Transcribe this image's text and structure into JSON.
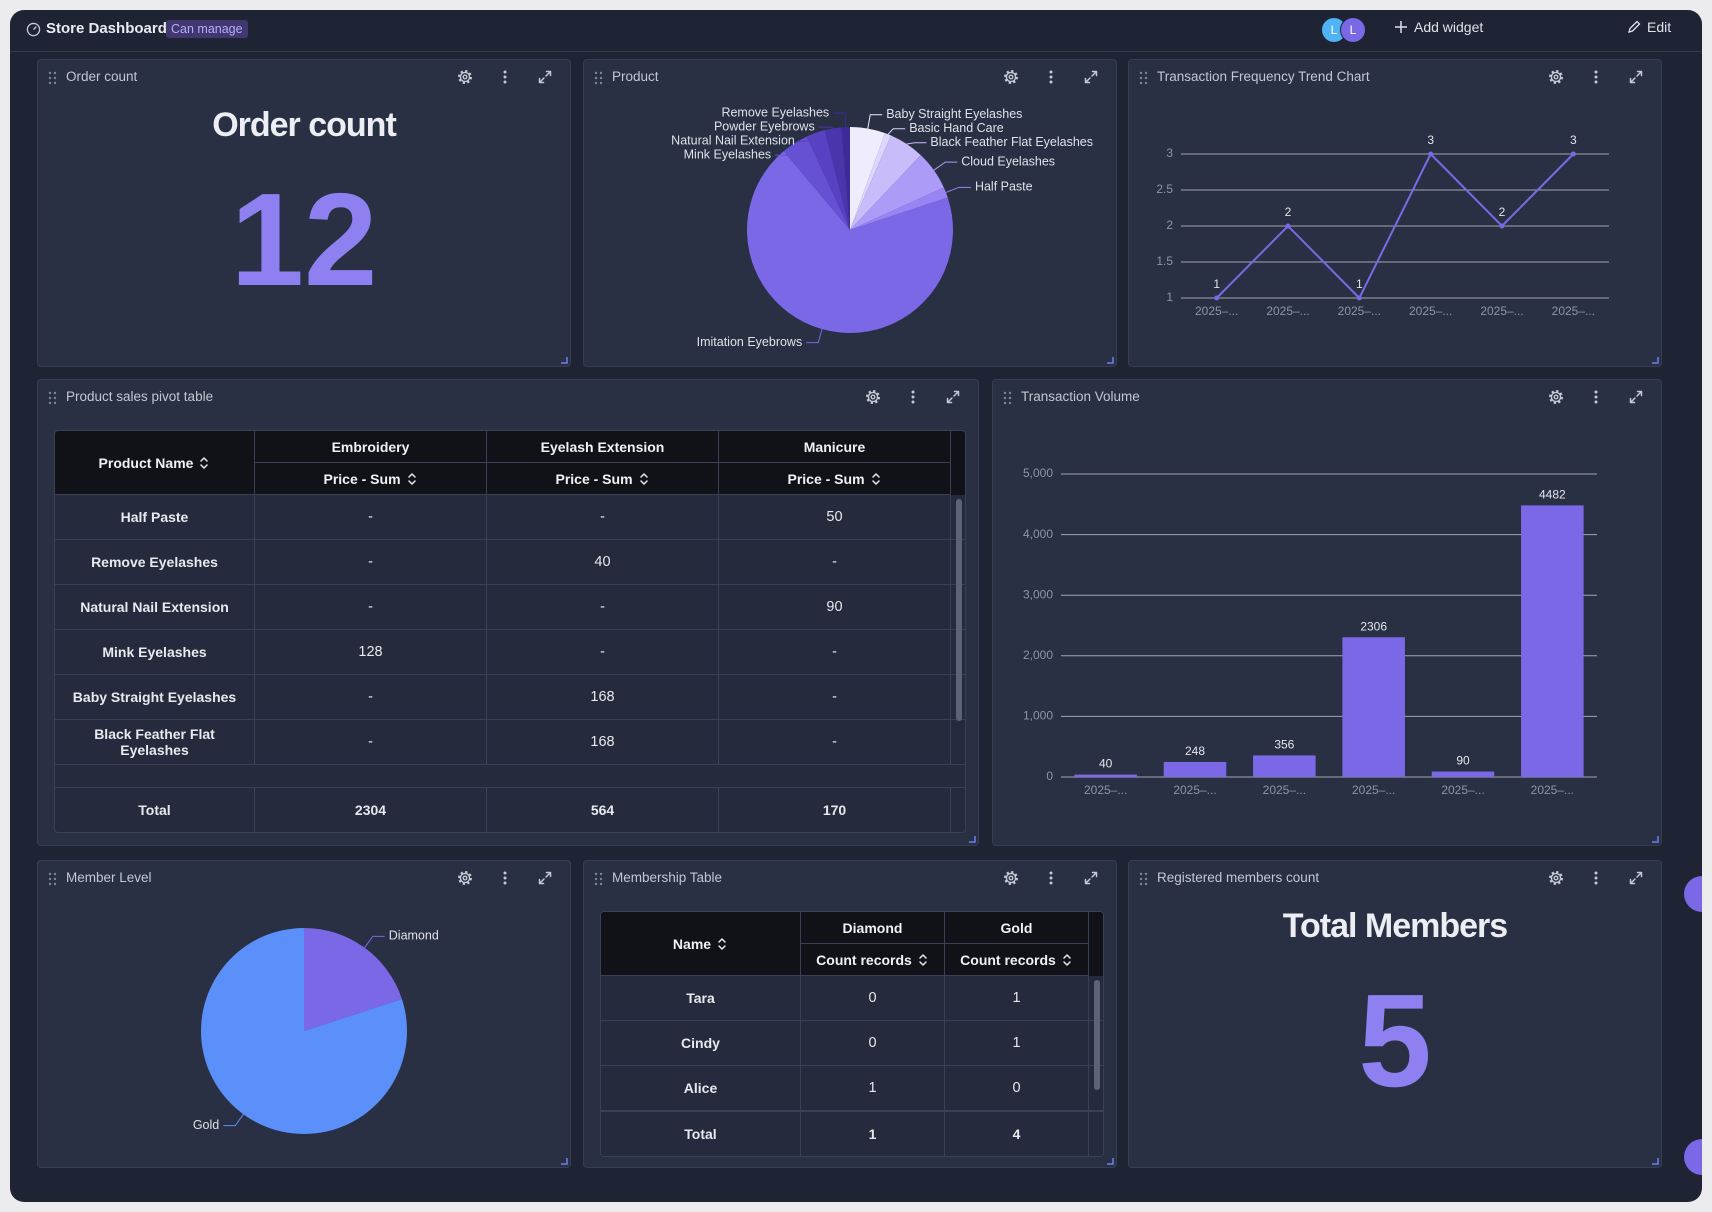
{
  "header": {
    "title": "Store Dashboard",
    "badge": "Can manage",
    "avatars": [
      "L",
      "L"
    ],
    "add_widget": "Add widget",
    "edit": "Edit"
  },
  "metrics": [
    {
      "title": "Order count",
      "label": "Order count",
      "value": 12
    },
    {
      "title": "Registered members count",
      "label": "Total Members",
      "value": 5
    }
  ],
  "tables": [
    {
      "title": "Product sales pivot table",
      "row_header": "Product Name",
      "column_groups": [
        "Embroidery",
        "Eyelash Extension",
        "Manicure"
      ],
      "measures": [
        "Price - Sum",
        "Price - Sum",
        "Price - Sum"
      ],
      "rows": [
        [
          "Half Paste",
          "-",
          "-",
          50
        ],
        [
          "Remove Eyelashes",
          "-",
          40,
          "-"
        ],
        [
          "Natural Nail Extension",
          "-",
          "-",
          90
        ],
        [
          "Mink Eyelashes",
          128,
          "-",
          "-"
        ],
        [
          "Baby Straight Eyelashes",
          "-",
          168,
          "-"
        ],
        [
          "Black Feather Flat Eyelashes",
          "-",
          168,
          "-"
        ]
      ],
      "total": [
        "Total",
        2304,
        564,
        170
      ]
    },
    {
      "title": "Membership Table",
      "row_header": "Name",
      "column_groups": [
        "Diamond",
        "Gold"
      ],
      "measures": [
        "Count records",
        "Count records"
      ],
      "rows": [
        [
          "Tara",
          0,
          1
        ],
        [
          "Cindy",
          0,
          1
        ],
        [
          "Alice",
          1,
          0
        ]
      ],
      "total": [
        "Total",
        1,
        4
      ]
    }
  ],
  "chart_data": [
    {
      "type": "pie",
      "title": "Product",
      "labels": [
        "Baby Straight Eyelashes",
        "Basic Hand Care",
        "Black Feather Flat Eyelashes",
        "Cloud Eyelashes",
        "Half Paste",
        "Imitation Eyebrows",
        "Mink Eyelashes",
        "Natural Nail Extension",
        "Powder Eyebrows",
        "Remove Eyelashes"
      ],
      "values": [
        168,
        30,
        168,
        188,
        50,
        2096,
        128,
        90,
        80,
        40
      ],
      "colors": [
        "#efecfd",
        "#ddd6fe",
        "#c8bcfb",
        "#ad9bf8",
        "#9884f3",
        "#7b68e6",
        "#6650d4",
        "#5841c2",
        "#4a35ad",
        "#3e2b98"
      ]
    },
    {
      "type": "line",
      "title": "Transaction Frequency Trend Chart",
      "categories": [
        "2025–...",
        "2025–...",
        "2025–...",
        "2025–...",
        "2025–...",
        "2025–..."
      ],
      "values": [
        1,
        2,
        1,
        3,
        2,
        3
      ],
      "color": "#7b68e6",
      "ylim": [
        1,
        3
      ],
      "yticks": [
        1,
        1.5,
        2,
        2.5,
        3
      ],
      "grid": true,
      "data_labels": true
    },
    {
      "type": "bar",
      "title": "Transaction Volume",
      "categories": [
        "2025–...",
        "2025–...",
        "2025–...",
        "2025–...",
        "2025–...",
        "2025–..."
      ],
      "values": [
        40,
        248,
        356,
        2306,
        90,
        4482
      ],
      "color": "#7b68e6",
      "ylim": [
        0,
        5000
      ],
      "yticks": [
        0,
        {
          "value": 1000,
          "label": "1,000"
        },
        {
          "value": 2000,
          "label": "2,000"
        },
        {
          "value": 3000,
          "label": "3,000"
        },
        {
          "value": 4000,
          "label": "4,000"
        },
        {
          "value": 5000,
          "label": "5,000"
        }
      ],
      "grid": true,
      "data_labels": true
    },
    {
      "type": "pie",
      "title": "Member Level",
      "labels": [
        "Diamond",
        "Gold"
      ],
      "values": [
        1,
        4
      ],
      "colors": [
        "#7b68e6",
        "#5b8ff9"
      ]
    }
  ]
}
